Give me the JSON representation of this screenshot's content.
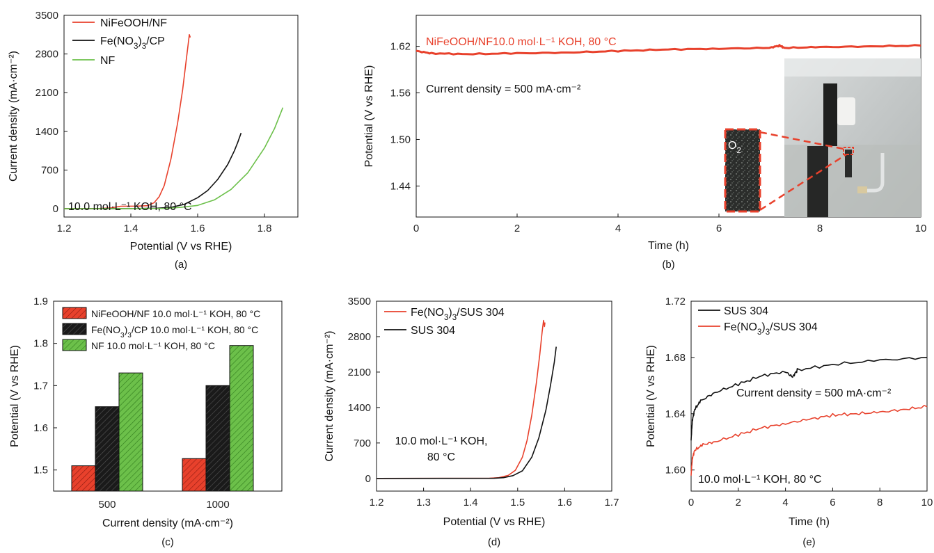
{
  "colors": {
    "red": "#e8412c",
    "black": "#111111",
    "green": "#6cc04a"
  },
  "icons": {
    "hatch": "diagonal-hatch-pattern"
  },
  "chart_data": [
    {
      "panel": "a",
      "type": "line",
      "caption": "(a)",
      "xlabel": "Potential (V vs RHE)",
      "ylabel": "Current density (mA·cm⁻²)",
      "xlim": [
        1.2,
        1.9
      ],
      "ylim": [
        -150,
        3500
      ],
      "xticks": [
        "1.2",
        "1.4",
        "1.6",
        "1.8"
      ],
      "yticks": [
        "0",
        "700",
        "1400",
        "2100",
        "2800",
        "3500"
      ],
      "legend_position": "top-left",
      "annotation": "10.0 mol·L⁻¹ KOH, 80 °C",
      "series": [
        {
          "name": "NiFeOOH/NF",
          "name_parts": [
            "NiFeOOH/NF"
          ],
          "color": "red",
          "points": [
            [
              1.2,
              0
            ],
            [
              1.3,
              2
            ],
            [
              1.34,
              15
            ],
            [
              1.37,
              45
            ],
            [
              1.42,
              48
            ],
            [
              1.45,
              55
            ],
            [
              1.47,
              110
            ],
            [
              1.485,
              220
            ],
            [
              1.5,
              420
            ],
            [
              1.52,
              900
            ],
            [
              1.54,
              1550
            ],
            [
              1.555,
              2150
            ],
            [
              1.565,
              2650
            ],
            [
              1.572,
              3000
            ],
            [
              1.575,
              3150
            ],
            [
              1.578,
              3100
            ]
          ]
        },
        {
          "name": "Fe(NO3)3/CP",
          "name_parts": [
            "Fe(NO",
            "3",
            ")",
            "3",
            "/CP"
          ],
          "color": "black",
          "points": [
            [
              1.2,
              0
            ],
            [
              1.4,
              2
            ],
            [
              1.48,
              10
            ],
            [
              1.52,
              25
            ],
            [
              1.56,
              80
            ],
            [
              1.6,
              200
            ],
            [
              1.63,
              330
            ],
            [
              1.66,
              530
            ],
            [
              1.69,
              800
            ],
            [
              1.71,
              1050
            ],
            [
              1.72,
              1200
            ],
            [
              1.73,
              1370
            ]
          ]
        },
        {
          "name": "NF",
          "name_parts": [
            "NF"
          ],
          "color": "green",
          "points": [
            [
              1.2,
              0
            ],
            [
              1.5,
              5
            ],
            [
              1.55,
              25
            ],
            [
              1.6,
              60
            ],
            [
              1.65,
              160
            ],
            [
              1.7,
              350
            ],
            [
              1.75,
              650
            ],
            [
              1.8,
              1100
            ],
            [
              1.83,
              1450
            ],
            [
              1.855,
              1830
            ]
          ]
        }
      ]
    },
    {
      "panel": "b",
      "type": "line",
      "caption": "(b)",
      "xlabel": "Time (h)",
      "ylabel": "Potential (V vs RHE)",
      "xlim": [
        0,
        10
      ],
      "ylim": [
        1.4,
        1.66
      ],
      "xticks": [
        "0",
        "2",
        "4",
        "6",
        "8",
        "10"
      ],
      "yticks": [
        "1.44",
        "1.50",
        "1.56",
        "1.62"
      ],
      "title": "NiFeOOH/NF10.0 mol·L⁻¹ KOH, 80 °C",
      "annotation": "Current density = 500 mA·cm⁻²",
      "inset_label": "O2",
      "series": [
        {
          "name": "NiFeOOH/NF",
          "color": "red",
          "points": [
            [
              0,
              1.614
            ],
            [
              0.3,
              1.611
            ],
            [
              1,
              1.61
            ],
            [
              2,
              1.611
            ],
            [
              3,
              1.612
            ],
            [
              4,
              1.614
            ],
            [
              5,
              1.616
            ],
            [
              6,
              1.617
            ],
            [
              7,
              1.618
            ],
            [
              7.2,
              1.621
            ],
            [
              7.3,
              1.618
            ],
            [
              8,
              1.619
            ],
            [
              9,
              1.62
            ],
            [
              10,
              1.621
            ]
          ]
        }
      ]
    },
    {
      "panel": "c",
      "type": "bar",
      "caption": "(c)",
      "xlabel": "Current density (mA·cm⁻²)",
      "ylabel": "Potential (V vs RHE)",
      "ylim": [
        1.45,
        1.9
      ],
      "yticks": [
        "1.5",
        "1.6",
        "1.7",
        "1.8",
        "1.9"
      ],
      "categories": [
        "500",
        "1000"
      ],
      "legend_position": "top-left",
      "series": [
        {
          "name": "NiFeOOH/NF 10.0 mol·L⁻¹ KOH, 80 °C",
          "name_parts": [
            "NiFeOOH/NF 10.0 mol·L⁻¹ KOH, 80 °C"
          ],
          "color": "red",
          "values": [
            1.51,
            1.527
          ]
        },
        {
          "name": "Fe(NO3)3/CP 10.0 mol·L⁻¹ KOH, 80 °C",
          "name_parts": [
            "Fe(NO",
            "3",
            ")",
            "3",
            "/CP 10.0 mol·L⁻¹ KOH, 80 °C"
          ],
          "color": "black",
          "values": [
            1.65,
            1.7
          ]
        },
        {
          "name": "NF 10.0 mol·L⁻¹ KOH, 80 °C",
          "name_parts": [
            "NF 10.0 mol·L⁻¹ KOH, 80 °C"
          ],
          "color": "green",
          "values": [
            1.73,
            1.795
          ]
        }
      ]
    },
    {
      "panel": "d",
      "type": "line",
      "caption": "(d)",
      "xlabel": "Potential (V vs RHE)",
      "ylabel": "Current density (mA·cm⁻²)",
      "xlim": [
        1.2,
        1.7
      ],
      "ylim": [
        -250,
        3500
      ],
      "xticks": [
        "1.2",
        "1.3",
        "1.4",
        "1.5",
        "1.6",
        "1.7"
      ],
      "yticks": [
        "0",
        "700",
        "1400",
        "2100",
        "2800",
        "3500"
      ],
      "legend_position": "top-left",
      "annotation_lines": [
        "10.0 mol·L⁻¹ KOH,",
        "80 °C"
      ],
      "series": [
        {
          "name": "Fe(NO3)3/SUS 304",
          "name_parts": [
            "Fe(NO",
            "3",
            ")",
            "3",
            "/SUS 304"
          ],
          "color": "red",
          "points": [
            [
              1.2,
              0
            ],
            [
              1.44,
              3
            ],
            [
              1.46,
              15
            ],
            [
              1.48,
              60
            ],
            [
              1.495,
              160
            ],
            [
              1.51,
              420
            ],
            [
              1.52,
              750
            ],
            [
              1.53,
              1250
            ],
            [
              1.54,
              1900
            ],
            [
              1.547,
              2450
            ],
            [
              1.552,
              2900
            ],
            [
              1.555,
              3120
            ],
            [
              1.557,
              3000
            ],
            [
              1.558,
              3080
            ]
          ]
        },
        {
          "name": "SUS 304",
          "name_parts": [
            "SUS 304"
          ],
          "color": "black",
          "points": [
            [
              1.2,
              0
            ],
            [
              1.45,
              3
            ],
            [
              1.47,
              15
            ],
            [
              1.49,
              55
            ],
            [
              1.51,
              150
            ],
            [
              1.53,
              420
            ],
            [
              1.545,
              800
            ],
            [
              1.56,
              1350
            ],
            [
              1.57,
              1850
            ],
            [
              1.578,
              2300
            ],
            [
              1.582,
              2600
            ]
          ]
        }
      ]
    },
    {
      "panel": "e",
      "type": "line",
      "caption": "(e)",
      "xlabel": "Time (h)",
      "ylabel": "Potential (V vs RHE)",
      "xlim": [
        0,
        10
      ],
      "ylim": [
        1.585,
        1.72
      ],
      "xticks": [
        "0",
        "2",
        "4",
        "6",
        "8",
        "10"
      ],
      "yticks": [
        "1.60",
        "1.64",
        "1.68",
        "1.72"
      ],
      "legend_position": "top-left",
      "annotation": "Current density = 500 mA·cm⁻²",
      "annotation2": "10.0 mol·L⁻¹ KOH, 80 °C",
      "series": [
        {
          "name": "SUS 304",
          "name_parts": [
            "SUS 304"
          ],
          "color": "black",
          "points": [
            [
              0,
              1.621
            ],
            [
              0.05,
              1.635
            ],
            [
              0.15,
              1.643
            ],
            [
              0.4,
              1.649
            ],
            [
              1,
              1.655
            ],
            [
              2,
              1.661
            ],
            [
              3,
              1.667
            ],
            [
              4,
              1.67
            ],
            [
              4.3,
              1.666
            ],
            [
              4.5,
              1.671
            ],
            [
              6,
              1.675
            ],
            [
              8,
              1.678
            ],
            [
              10,
              1.68
            ]
          ]
        },
        {
          "name": "Fe(NO3)3/SUS 304",
          "name_parts": [
            "Fe(NO",
            "3",
            ")",
            "3",
            "/SUS 304"
          ],
          "color": "red",
          "points": [
            [
              0,
              1.596
            ],
            [
              0.05,
              1.608
            ],
            [
              0.15,
              1.614
            ],
            [
              0.5,
              1.618
            ],
            [
              1,
              1.62
            ],
            [
              2,
              1.625
            ],
            [
              3,
              1.63
            ],
            [
              4,
              1.633
            ],
            [
              5,
              1.636
            ],
            [
              6,
              1.639
            ],
            [
              7,
              1.64
            ],
            [
              8,
              1.641
            ],
            [
              9,
              1.643
            ],
            [
              10,
              1.645
            ]
          ]
        }
      ]
    }
  ]
}
